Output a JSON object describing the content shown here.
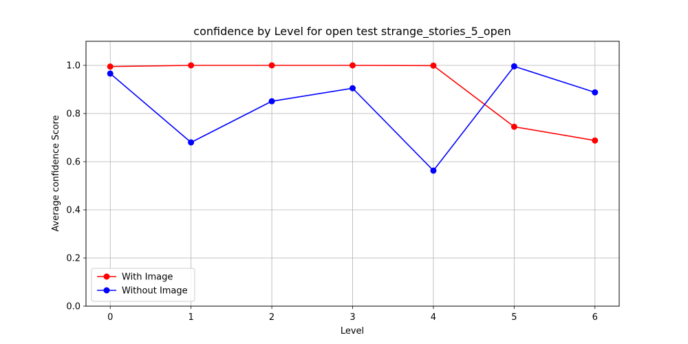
{
  "chart_data": {
    "type": "line",
    "title": "confidence by Level for open test strange_stories_5_open",
    "xlabel": "Level",
    "ylabel": "Average confidence Score",
    "x": [
      0,
      1,
      2,
      3,
      4,
      5,
      6
    ],
    "xlim": [
      -0.3,
      6.3
    ],
    "ylim": [
      0.0,
      1.1
    ],
    "xticks": [
      "0",
      "1",
      "2",
      "3",
      "4",
      "5",
      "6"
    ],
    "yticks": [
      "0.0",
      "0.2",
      "0.4",
      "0.6",
      "0.8",
      "1.0"
    ],
    "grid": true,
    "legend_position": "lower-left",
    "series": [
      {
        "name": "With Image",
        "color": "#ff0000",
        "values": [
          0.995,
          1.0,
          1.0,
          1.0,
          0.999,
          0.745,
          0.688
        ]
      },
      {
        "name": "Without Image",
        "color": "#0000ff",
        "values": [
          0.966,
          0.68,
          0.851,
          0.905,
          0.563,
          0.996,
          0.888
        ]
      }
    ]
  }
}
